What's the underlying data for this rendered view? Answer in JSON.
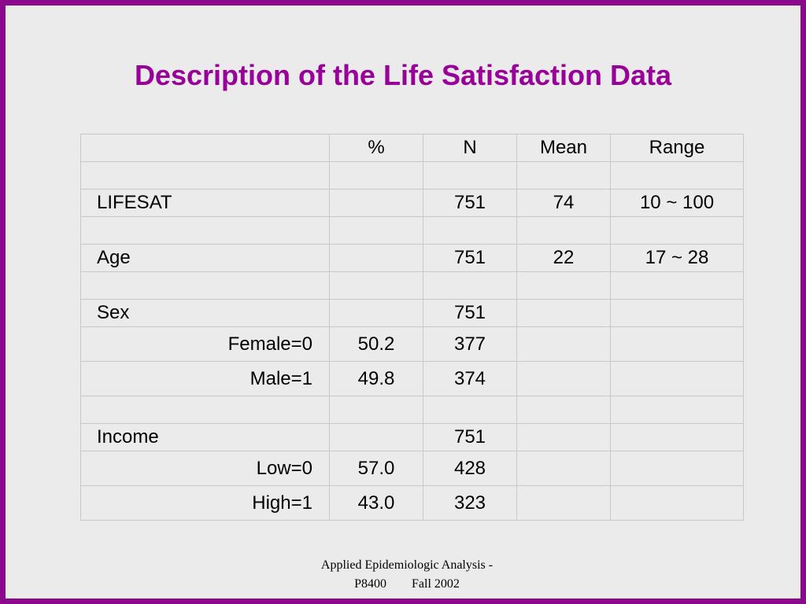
{
  "title": "Description of the Life Satisfaction Data",
  "table": {
    "headers": [
      "",
      "%",
      "N",
      "Mean",
      "Range"
    ],
    "rows": [
      {
        "label": "LIFESAT",
        "pct": "",
        "n": "751",
        "mean": "74",
        "range": "10 ~ 100"
      },
      {
        "label": "Age",
        "pct": "",
        "n": "751",
        "mean": "22",
        "range": "17 ~ 28"
      },
      {
        "label": "Sex",
        "pct": "",
        "n": "751",
        "mean": "",
        "range": ""
      },
      {
        "label": "Female=0",
        "pct": "50.2",
        "n": "377",
        "mean": "",
        "range": ""
      },
      {
        "label": "Male=1",
        "pct": "49.8",
        "n": "374",
        "mean": "",
        "range": ""
      },
      {
        "label": "Income",
        "pct": "",
        "n": "751",
        "mean": "",
        "range": ""
      },
      {
        "label": "Low=0",
        "pct": "57.0",
        "n": "428",
        "mean": "",
        "range": ""
      },
      {
        "label": "High=1",
        "pct": "43.0",
        "n": "323",
        "mean": "",
        "range": ""
      }
    ]
  },
  "footer": {
    "line1": "Applied Epidemiologic Analysis -",
    "line2": "P8400        Fall 2002"
  },
  "colors": {
    "frame": "#8b0a8c",
    "title": "#990099",
    "background": "#ebebeb"
  }
}
